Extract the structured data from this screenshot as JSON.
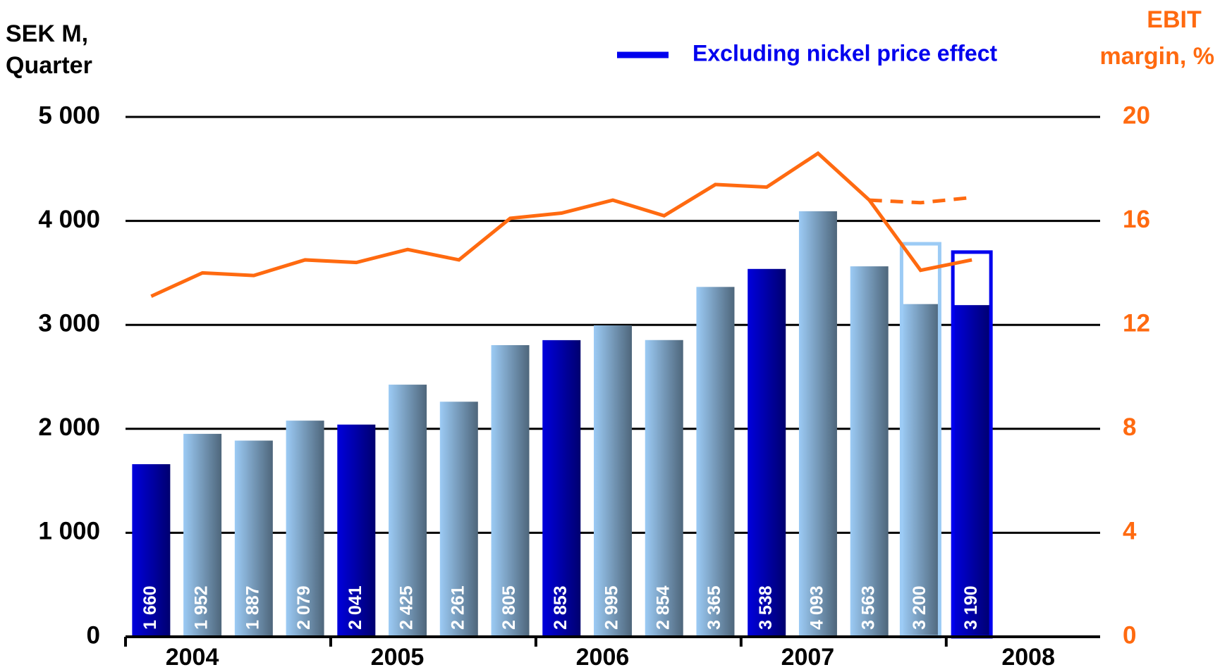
{
  "chart_data": {
    "type": "bar",
    "y_title": [
      "SEK M,",
      "Quarter"
    ],
    "y2_title": [
      "EBIT",
      "margin, %"
    ],
    "categories": [
      null,
      null,
      null,
      null,
      null,
      null,
      null,
      null,
      null,
      null,
      null,
      null,
      null,
      null,
      null,
      null,
      null
    ],
    "year_labels": [
      "2004",
      "2005",
      "2006",
      "2007",
      "2008"
    ],
    "ylim": [
      0,
      5000
    ],
    "yticks": [
      0,
      {
        "value": 1000,
        "label": "1 000"
      },
      {
        "value": 2000,
        "label": "2 000"
      },
      {
        "value": 3000,
        "label": "3 000"
      },
      {
        "value": 4000,
        "label": "4 000"
      },
      {
        "value": 5000,
        "label": "5 000"
      }
    ],
    "y2lim": [
      0,
      20
    ],
    "y2ticks": [
      0,
      4,
      8,
      12,
      16,
      20
    ],
    "grid": true,
    "series": [
      {
        "type": "bar",
        "values": [
          1660,
          1952,
          1887,
          2079,
          2041,
          2425,
          2261,
          2805,
          2853,
          2995,
          2854,
          3365,
          3538,
          4093,
          3563,
          3200,
          3190
        ],
        "value_labels": [
          "1 660",
          "1 952",
          "1 887",
          "2 079",
          "2 041",
          "2 425",
          "2 261",
          "2 805",
          "2 853",
          "2 995",
          "2 854",
          "3 365",
          "3 538",
          "4 093",
          "3 563",
          "3 200",
          "3 190"
        ],
        "colors": [
          "#0000dd",
          "#9ccbf5",
          "#9ccbf5",
          "#9ccbf5",
          "#0000dd",
          "#9ccbf5",
          "#9ccbf5",
          "#9ccbf5",
          "#0000dd",
          "#9ccbf5",
          "#9ccbf5",
          "#9ccbf5",
          "#0000dd",
          "#9ccbf5",
          "#9ccbf5",
          "#9ccbf5",
          "#0000dd"
        ]
      },
      {
        "type": "outline",
        "name": "Excluding nickel price effect",
        "color": "#0000ee",
        "values": [
          null,
          null,
          null,
          null,
          null,
          null,
          null,
          null,
          null,
          null,
          null,
          null,
          null,
          null,
          null,
          3780,
          3700
        ],
        "colors": [
          null,
          null,
          null,
          null,
          null,
          null,
          null,
          null,
          null,
          null,
          null,
          null,
          null,
          null,
          null,
          "#9ccbf5",
          "#0000ee"
        ]
      },
      {
        "type": "line",
        "axis": "y2",
        "color": "#ff6a10",
        "dashed": false,
        "values": [
          13.1,
          14.0,
          13.9,
          14.5,
          14.4,
          14.9,
          14.5,
          16.1,
          16.3,
          16.8,
          16.2,
          17.4,
          17.3,
          18.6,
          16.8,
          14.1,
          14.5
        ]
      },
      {
        "type": "line",
        "axis": "y2",
        "color": "#ff6a10",
        "dashed": true,
        "values": [
          null,
          null,
          null,
          null,
          null,
          null,
          null,
          null,
          null,
          null,
          null,
          null,
          null,
          null,
          16.8,
          16.7,
          16.9
        ]
      }
    ]
  }
}
